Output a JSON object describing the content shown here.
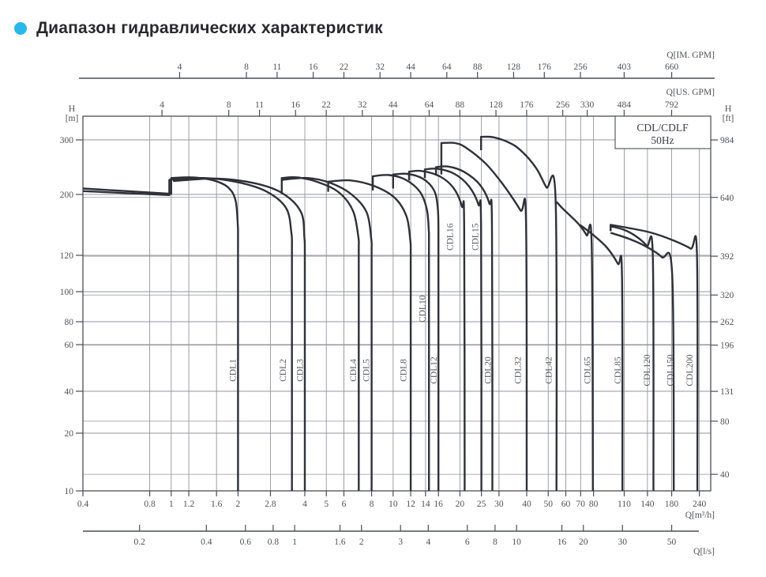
{
  "page": {
    "title": "Диапазон гидравлических характеристик",
    "bullet_color": "#29b8ea"
  },
  "chart_data": {
    "type": "line",
    "title": "Диапазон гидравлических характеристик",
    "legend": {
      "line1": "CDL/CDLF",
      "line2": "50Hz",
      "position": "top-right"
    },
    "grid": true,
    "x_scale": "log",
    "y_scale": "log-compressed",
    "axes": {
      "top_im_gpm": {
        "label": "Q[IM. GPM]",
        "m3h_per_unit": 0.27276,
        "ticks": [
          4,
          8,
          11,
          16,
          22,
          32,
          44,
          64,
          88,
          128,
          176,
          256,
          403,
          660
        ]
      },
      "top_us_gpm": {
        "label": "Q[US. GPM]",
        "m3h_per_unit": 0.22712,
        "ticks": [
          4,
          8,
          11,
          16,
          22,
          32,
          44,
          64,
          88,
          128,
          176,
          256,
          330,
          484,
          792
        ]
      },
      "left_m": {
        "label": "H",
        "unit": "[m]",
        "ticks": [
          10,
          20,
          40,
          60,
          80,
          100,
          120,
          200,
          300
        ]
      },
      "right_ft": {
        "label": "H",
        "unit": "[ft]",
        "m_per_unit": 0.3048,
        "ticks": [
          40,
          80,
          131,
          196,
          262,
          320,
          392,
          640,
          984
        ]
      },
      "bottom_m3h": {
        "label": "Q[m³/h]",
        "range": [
          0.4,
          260
        ],
        "ticks": [
          0.4,
          0.8,
          1,
          1.2,
          1.6,
          2,
          2.8,
          4,
          5,
          6,
          8,
          10,
          12,
          14,
          16,
          20,
          25,
          30,
          40,
          50,
          60,
          70,
          80,
          110,
          140,
          180,
          240
        ]
      },
      "bottom_ls": {
        "label": "Q[l/s]",
        "m3h_per_unit": 3.6,
        "ticks": [
          0.2,
          0.4,
          0.6,
          0.8,
          1,
          1.6,
          2,
          3,
          4,
          6,
          8,
          10,
          16,
          20,
          30,
          50
        ]
      }
    },
    "series": [
      {
        "name": "CDL1",
        "label_q": 1.89,
        "label_h": 48,
        "points": [
          [
            0.4,
            209
          ],
          [
            1.0,
            201
          ],
          [
            1.0,
            226
          ],
          [
            1.25,
            227
          ],
          [
            1.55,
            222
          ],
          [
            1.8,
            211
          ],
          [
            1.95,
            190
          ],
          [
            2.0,
            150
          ],
          [
            2.0,
            10
          ]
        ]
      },
      {
        "name": "CDL2",
        "label_q": 3.18,
        "label_h": 48,
        "points": [
          [
            0.4,
            205
          ],
          [
            0.98,
            199
          ],
          [
            0.98,
            223
          ],
          [
            1.4,
            226
          ],
          [
            2.0,
            219
          ],
          [
            2.7,
            204
          ],
          [
            3.3,
            178
          ],
          [
            3.48,
            145
          ],
          [
            3.5,
            132
          ],
          [
            3.5,
            10
          ]
        ]
      },
      {
        "name": "CDL3",
        "label_q": 3.8,
        "label_h": 48,
        "points": [
          [
            1.02,
            221
          ],
          [
            1.6,
            225
          ],
          [
            2.4,
            217
          ],
          [
            3.2,
            201
          ],
          [
            3.85,
            172
          ],
          [
            3.98,
            140
          ],
          [
            4.0,
            130
          ],
          [
            4.0,
            10
          ]
        ]
      },
      {
        "name": "CDL4",
        "label_q": 6.59,
        "label_h": 48,
        "points": [
          [
            3.15,
            201
          ],
          [
            3.15,
            226
          ],
          [
            3.7,
            227
          ],
          [
            4.6,
            219
          ],
          [
            5.7,
            203
          ],
          [
            6.6,
            174
          ],
          [
            6.97,
            140
          ],
          [
            7.0,
            130
          ],
          [
            7.0,
            10
          ]
        ]
      },
      {
        "name": "CDL5",
        "label_q": 7.56,
        "label_h": 48,
        "points": [
          [
            3.17,
            223
          ],
          [
            4.1,
            226
          ],
          [
            5.2,
            218
          ],
          [
            6.5,
            200
          ],
          [
            7.6,
            172
          ],
          [
            7.97,
            138
          ],
          [
            8.0,
            128
          ],
          [
            8.0,
            10
          ]
        ]
      },
      {
        "name": "CDL8",
        "label_q": 11.1,
        "label_h": 48,
        "points": [
          [
            5.1,
            204
          ],
          [
            5.1,
            220
          ],
          [
            6.4,
            222
          ],
          [
            8.2,
            213
          ],
          [
            10.2,
            194
          ],
          [
            11.5,
            166
          ],
          [
            11.95,
            136
          ],
          [
            12.0,
            128
          ],
          [
            12.0,
            10
          ]
        ]
      },
      {
        "name": "CDL10",
        "label_q": 13.5,
        "label_h": 88,
        "points": [
          [
            8.1,
            206
          ],
          [
            8.1,
            229
          ],
          [
            9.6,
            231
          ],
          [
            11.4,
            223
          ],
          [
            13.2,
            204
          ],
          [
            14.2,
            176
          ],
          [
            14.5,
            145
          ],
          [
            14.5,
            10
          ]
        ]
      },
      {
        "name": "CDL12",
        "label_q": 15.2,
        "label_h": 48,
        "points": [
          [
            10.0,
            209
          ],
          [
            10.0,
            232
          ],
          [
            11.6,
            233
          ],
          [
            13.6,
            225
          ],
          [
            15.3,
            206
          ],
          [
            15.9,
            178
          ],
          [
            16.0,
            148
          ],
          [
            16.0,
            10
          ]
        ]
      },
      {
        "name": "CDL16",
        "label_q": 18.0,
        "label_h": 140,
        "points": [
          [
            11.8,
            222
          ],
          [
            11.8,
            237
          ],
          [
            13.5,
            238
          ],
          [
            16.2,
            229
          ],
          [
            18.7,
            210
          ],
          [
            20.4,
            181
          ],
          [
            20.9,
            152
          ],
          [
            21.0,
            10
          ]
        ]
      },
      {
        "name": "CDL15",
        "label_q": 23.4,
        "label_h": 140,
        "points": [
          [
            13.9,
            226
          ],
          [
            13.9,
            241
          ],
          [
            15.9,
            242
          ],
          [
            18.9,
            233
          ],
          [
            21.9,
            213
          ],
          [
            24.2,
            184
          ],
          [
            24.9,
            152
          ],
          [
            25.0,
            10
          ]
        ]
      },
      {
        "name": "CDL20",
        "label_q": 26.7,
        "label_h": 48,
        "points": [
          [
            15.6,
            230
          ],
          [
            15.6,
            245
          ],
          [
            17.8,
            246
          ],
          [
            21.0,
            236
          ],
          [
            24.6,
            215
          ],
          [
            27.1,
            186
          ],
          [
            27.9,
            152
          ],
          [
            28.0,
            10
          ]
        ]
      },
      {
        "name": "CDL32",
        "label_q": 36.4,
        "label_h": 48,
        "points": [
          [
            16.5,
            232
          ],
          [
            16.5,
            293
          ],
          [
            19.0,
            293
          ],
          [
            21.3,
            283
          ],
          [
            26.2,
            251
          ],
          [
            31.8,
            212
          ],
          [
            37.5,
            175
          ],
          [
            39.7,
            160
          ],
          [
            40.0,
            10
          ]
        ]
      },
      {
        "name": "CDL42",
        "label_q": 50.1,
        "label_h": 48,
        "points": [
          [
            24.9,
            278
          ],
          [
            24.9,
            307
          ],
          [
            28.2,
            306
          ],
          [
            33.0,
            295
          ],
          [
            37.5,
            278
          ],
          [
            44.0,
            244
          ],
          [
            49.0,
            211
          ],
          [
            54.0,
            190
          ],
          [
            54.5,
            10
          ]
        ]
      },
      {
        "name": "CDL65",
        "label_q": 75.0,
        "label_h": 48,
        "points": [
          [
            54.5,
            188
          ],
          [
            58.0,
            178
          ],
          [
            63.0,
            167
          ],
          [
            69.0,
            155
          ],
          [
            74.5,
            142
          ],
          [
            78.5,
            130
          ],
          [
            79.5,
            10
          ]
        ]
      },
      {
        "name": "CDL85",
        "label_q": 102.8,
        "label_h": 48,
        "points": [
          [
            69.5,
            155
          ],
          [
            80.0,
            142
          ],
          [
            92.0,
            128
          ],
          [
            103.0,
            115
          ],
          [
            107.5,
            109
          ],
          [
            108.0,
            10
          ]
        ]
      },
      {
        "name": "CDL120",
        "label_q": 139.0,
        "label_h": 48,
        "points": [
          [
            95.5,
            147
          ],
          [
            95.5,
            153
          ],
          [
            109.0,
            149
          ],
          [
            124.0,
            141
          ],
          [
            139.0,
            130
          ],
          [
            148.0,
            119
          ],
          [
            149.0,
            10
          ]
        ]
      },
      {
        "name": "CDL150",
        "label_q": 177.0,
        "label_h": 48,
        "points": [
          [
            95.5,
            145
          ],
          [
            115.0,
            138
          ],
          [
            136.0,
            130
          ],
          [
            162.0,
            119
          ],
          [
            181.0,
            109
          ],
          [
            184.0,
            10
          ]
        ]
      },
      {
        "name": "CDL200",
        "label_q": 216.0,
        "label_h": 48,
        "points": [
          [
            95.5,
            148
          ],
          [
            95.5,
            155
          ],
          [
            115.0,
            151
          ],
          [
            146.0,
            145
          ],
          [
            183.0,
            136
          ],
          [
            219.0,
            127
          ],
          [
            234.0,
            120
          ],
          [
            235.0,
            10
          ]
        ]
      }
    ],
    "colors": {
      "curve": "#2e3138",
      "grid": "#93969d",
      "axis": "#4a4e57",
      "tick_text": "#4f5257"
    }
  }
}
